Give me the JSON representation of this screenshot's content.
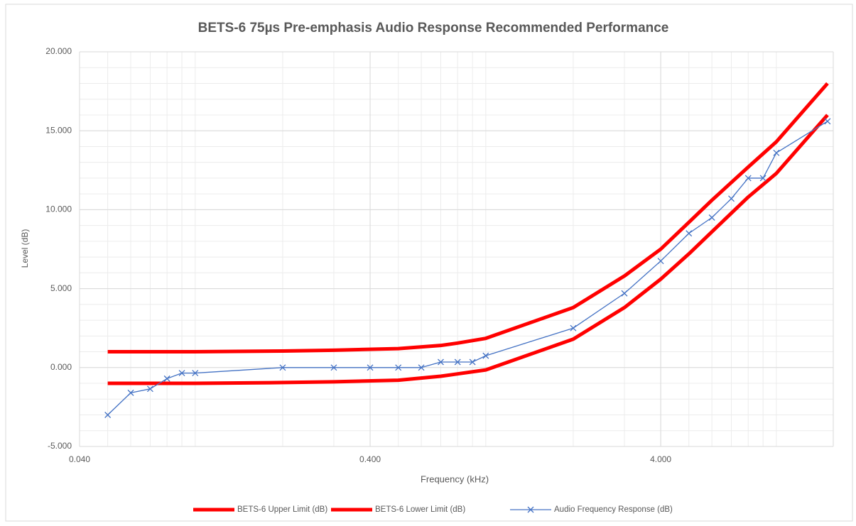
{
  "chart_data": {
    "type": "line",
    "title": "BETS-6 75µs Pre-emphasis Audio Response Recommended Performance",
    "x_label": "Frequency (kHz)",
    "y_label": "Level (dB)",
    "x_log": true,
    "grid": true,
    "minor_grid": true,
    "legend": "bottom",
    "xlim": [
      0.04,
      15.7
    ],
    "ylim": [
      -5,
      20
    ],
    "xticks": [
      {
        "value": 0.04,
        "label": "0.040"
      },
      {
        "value": 0.4,
        "label": "0.400"
      },
      {
        "value": 4,
        "label": "4.000"
      }
    ],
    "yticks": [
      {
        "value": -5,
        "label": "-5.000"
      },
      {
        "value": 0,
        "label": "0.000"
      },
      {
        "value": 5,
        "label": "5.000"
      },
      {
        "value": 10,
        "label": "10.000"
      },
      {
        "value": 15,
        "label": "15.000"
      },
      {
        "value": 20,
        "label": "20.000"
      }
    ],
    "series": [
      {
        "name": "BETS-6 Upper Limit (dB)",
        "color": "#ff0000",
        "width": 5,
        "marker": false,
        "x": [
          0.05,
          0.1,
          0.2,
          0.3,
          0.5,
          0.7,
          0.8,
          1,
          2,
          3,
          4,
          5,
          6,
          8,
          10,
          15
        ],
        "values": [
          1.0,
          1.0,
          1.05,
          1.1,
          1.2,
          1.4,
          1.55,
          1.85,
          3.8,
          5.8,
          7.5,
          9.2,
          10.6,
          12.7,
          14.3,
          18.0
        ]
      },
      {
        "name": "BETS-6 Lower Limit (dB)",
        "color": "#ff0000",
        "width": 5,
        "marker": false,
        "x": [
          0.05,
          0.1,
          0.2,
          0.3,
          0.5,
          0.7,
          0.8,
          1,
          2,
          3,
          4,
          5,
          6,
          8,
          10,
          15
        ],
        "values": [
          -1.0,
          -1.0,
          -0.95,
          -0.9,
          -0.8,
          -0.55,
          -0.4,
          -0.15,
          1.8,
          3.8,
          5.6,
          7.2,
          8.6,
          10.8,
          12.3,
          16.0
        ]
      },
      {
        "name": "Audio Frequency Response (dB)",
        "color": "#4472c4",
        "width": 1.3,
        "marker": true,
        "x": [
          0.05,
          0.06,
          0.07,
          0.08,
          0.09,
          0.1,
          0.2,
          0.3,
          0.4,
          0.5,
          0.6,
          0.7,
          0.8,
          0.9,
          1,
          2,
          3,
          4,
          5,
          6,
          7,
          8,
          9,
          10,
          15
        ],
        "values": [
          -3.0,
          -1.6,
          -1.35,
          -0.7,
          -0.35,
          -0.35,
          0,
          0,
          0,
          0,
          0,
          0.35,
          0.35,
          0.35,
          0.75,
          2.5,
          4.7,
          6.75,
          8.5,
          9.5,
          10.7,
          12.0,
          12.0,
          13.6,
          15.6
        ]
      }
    ]
  }
}
